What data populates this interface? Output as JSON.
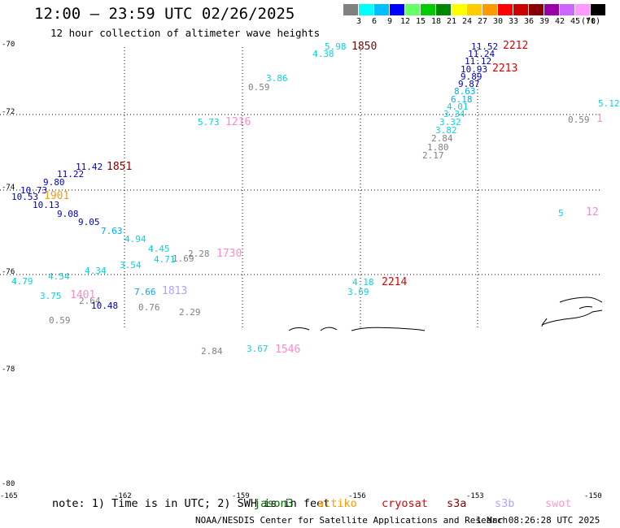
{
  "header": {
    "title": "12:00 – 23:59 UTC 02/26/2025",
    "subtitle": "12 hour collection of altimeter wave heights"
  },
  "legend": {
    "unit": "(ft)",
    "colors": [
      "#808080",
      "#00ffff",
      "#00bfff",
      "#0000ff",
      "#66ff66",
      "#00cc00",
      "#008800",
      "#ffff00",
      "#ffcc00",
      "#ff9900",
      "#ff0000",
      "#cc0000",
      "#880000",
      "#9900aa",
      "#cc66ff",
      "#ff99ff",
      "#000000"
    ],
    "labels": [
      "3",
      "6",
      "9",
      "12",
      "15",
      "18",
      "21",
      "24",
      "27",
      "30",
      "33",
      "36",
      "39",
      "42",
      "45",
      "70"
    ]
  },
  "axes": {
    "lat_labels": [
      "-70",
      "-72",
      "-74",
      "-76",
      "-78",
      "-80"
    ],
    "lon_labels": [
      "-165",
      "-162",
      "-159",
      "-156",
      "-153",
      "-150"
    ]
  },
  "wave_heights": [
    {
      "v": "5.98",
      "c": "#00d8e0"
    },
    {
      "v": "4.38",
      "c": "#00d8e0"
    },
    {
      "v": "3.86",
      "c": "#00d8e0"
    },
    {
      "v": "0.59",
      "c": "#808080"
    },
    {
      "v": "5.73",
      "c": "#00d8e0"
    },
    {
      "v": "11.52",
      "c": "#0000c0"
    },
    {
      "v": "11.24",
      "c": "#0000c0"
    },
    {
      "v": "11.12",
      "c": "#0000c0"
    },
    {
      "v": "10.93",
      "c": "#0000c0"
    },
    {
      "v": "9.89",
      "c": "#0000c0"
    },
    {
      "v": "9.87",
      "c": "#0000c0"
    },
    {
      "v": "8.63",
      "c": "#00aaff"
    },
    {
      "v": "6.18",
      "c": "#00aaff"
    },
    {
      "v": "4.01",
      "c": "#00d8e0"
    },
    {
      "v": "3.34",
      "c": "#00d8e0"
    },
    {
      "v": "3.32",
      "c": "#00d8e0"
    },
    {
      "v": "3.82",
      "c": "#00d8e0"
    },
    {
      "v": "2.84",
      "c": "#808080"
    },
    {
      "v": "1.80",
      "c": "#808080"
    },
    {
      "v": "2.17",
      "c": "#808080"
    },
    {
      "v": "0.59",
      "c": "#808080"
    },
    {
      "v": "5.12",
      "c": "#00d8e0"
    },
    {
      "v": "5",
      "c": "#00d8e0"
    },
    {
      "v": "11.42",
      "c": "#0000c0"
    },
    {
      "v": "11.22",
      "c": "#0000c0"
    },
    {
      "v": "9.80",
      "c": "#0000c0"
    },
    {
      "v": "10.73",
      "c": "#0000c0"
    },
    {
      "v": "10.53",
      "c": "#0000c0"
    },
    {
      "v": "10.13",
      "c": "#0000c0"
    },
    {
      "v": "9.08",
      "c": "#0000c0"
    },
    {
      "v": "9.05",
      "c": "#0000c0"
    },
    {
      "v": "7.63",
      "c": "#00aaff"
    },
    {
      "v": "4.94",
      "c": "#00d8e0"
    },
    {
      "v": "4.45",
      "c": "#00d8e0"
    },
    {
      "v": "4.71",
      "c": "#00d8e0"
    },
    {
      "v": "1.69",
      "c": "#808080"
    },
    {
      "v": "2.28",
      "c": "#808080"
    },
    {
      "v": "4.34",
      "c": "#00d8e0"
    },
    {
      "v": "3.54",
      "c": "#00d8e0"
    },
    {
      "v": "4.54",
      "c": "#00d8e0"
    },
    {
      "v": "4.79",
      "c": "#00d8e0"
    },
    {
      "v": "3.75",
      "c": "#00d8e0"
    },
    {
      "v": "2.64",
      "c": "#808080"
    },
    {
      "v": "10.48",
      "c": "#0000c0"
    },
    {
      "v": "0.59",
      "c": "#808080"
    },
    {
      "v": "7.66",
      "c": "#00aaff"
    },
    {
      "v": "0.76",
      "c": "#808080"
    },
    {
      "v": "2.29",
      "c": "#808080"
    },
    {
      "v": "4.18",
      "c": "#00d8e0"
    },
    {
      "v": "3.69",
      "c": "#00d8e0"
    },
    {
      "v": "2.84",
      "c": "#808080"
    },
    {
      "v": "3.67",
      "c": "#00d8e0"
    }
  ],
  "pass_times": [
    {
      "v": "1850",
      "c": "#880000"
    },
    {
      "v": "2212",
      "c": "#dd0000"
    },
    {
      "v": "2213",
      "c": "#dd0000"
    },
    {
      "v": "1216",
      "c": "#ff88cc"
    },
    {
      "v": "12",
      "c": "#ff88cc"
    },
    {
      "v": "1",
      "c": "#ff88cc"
    },
    {
      "v": "1851",
      "c": "#880000"
    },
    {
      "v": "1901",
      "c": "#ff9900"
    },
    {
      "v": "1730",
      "c": "#ff88cc"
    },
    {
      "v": "1401",
      "c": "#ff88cc"
    },
    {
      "v": "1813",
      "c": "#b0a0ff"
    },
    {
      "v": "2214",
      "c": "#dd0000"
    },
    {
      "v": "1546",
      "c": "#ff88cc"
    }
  ],
  "note": "note: 1) Time is in UTC; 2) SWH is in feet",
  "satellites": [
    {
      "name": "jason3",
      "color": "#006600"
    },
    {
      "name": "altiko",
      "color": "#ff9900"
    },
    {
      "name": "cryosat",
      "color": "#dd0000"
    },
    {
      "name": "s3a",
      "color": "#880000"
    },
    {
      "name": "s3b",
      "color": "#b0a0ff"
    },
    {
      "name": "swot",
      "color": "#ff99cc"
    }
  ],
  "footer": {
    "credit": "NOAA/NESDIS Center for Satellite Applications and Research",
    "timestamp": "1 Mar 08:26:28 UTC 2025"
  }
}
